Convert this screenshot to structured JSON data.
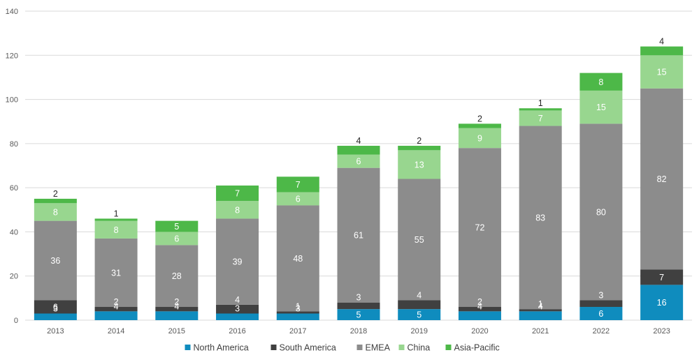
{
  "chart_data": {
    "type": "bar",
    "stacked": true,
    "categories": [
      "2013",
      "2014",
      "2015",
      "2016",
      "2017",
      "2018",
      "2019",
      "2020",
      "2021",
      "2022",
      "2023"
    ],
    "series": [
      {
        "name": "North America",
        "color": "#0F8CBE",
        "label_color": "#FFFFFF",
        "values": [
          3,
          4,
          4,
          3,
          3,
          5,
          5,
          4,
          4,
          6,
          16
        ]
      },
      {
        "name": "South America",
        "color": "#404040",
        "label_color": "#FFFFFF",
        "values": [
          6,
          2,
          2,
          4,
          1,
          3,
          4,
          2,
          1,
          3,
          7
        ]
      },
      {
        "name": "EMEA",
        "color": "#8C8C8C",
        "label_color": "#FFFFFF",
        "values": [
          36,
          31,
          28,
          39,
          48,
          61,
          55,
          72,
          83,
          80,
          82
        ]
      },
      {
        "name": "China",
        "color": "#98D68F",
        "label_color": "#FFFFFF",
        "values": [
          8,
          8,
          6,
          8,
          6,
          6,
          13,
          9,
          7,
          15,
          15
        ]
      },
      {
        "name": "Asia-Pacific",
        "color": "#4DB848",
        "label_color": "#FFFFFF",
        "values": [
          2,
          1,
          5,
          7,
          7,
          4,
          2,
          2,
          1,
          8,
          4
        ]
      }
    ],
    "ylim": [
      0,
      140
    ],
    "yticks": [
      0,
      20,
      40,
      60,
      80,
      100,
      120,
      140
    ],
    "grid": true,
    "legend_position": "bottom",
    "title": "",
    "xlabel": "",
    "ylabel": ""
  }
}
